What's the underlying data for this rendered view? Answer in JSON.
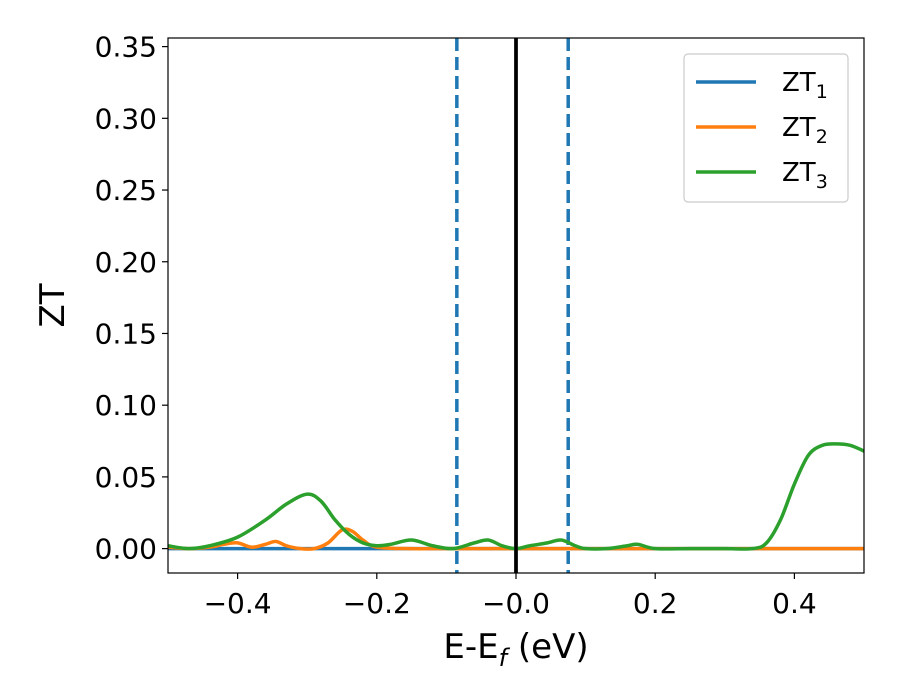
{
  "chart_data": {
    "type": "line",
    "title": "",
    "xlabel": "E-E",
    "xlabel_subscript": "f",
    "xlabel_suffix": " (eV)",
    "ylabel": "ZT",
    "xlim": [
      -0.5,
      0.5
    ],
    "ylim": [
      -0.017,
      0.356
    ],
    "xticks": [
      -0.4,
      -0.2,
      0.0,
      0.2,
      0.4
    ],
    "xtick_labels": [
      "−0.4",
      "−0.2",
      "−0.0",
      "0.2",
      "0.4"
    ],
    "yticks": [
      0.0,
      0.05,
      0.1,
      0.15,
      0.2,
      0.25,
      0.3,
      0.35
    ],
    "ytick_labels": [
      "0.00",
      "0.05",
      "0.10",
      "0.15",
      "0.20",
      "0.25",
      "0.30",
      "0.35"
    ],
    "grid": false,
    "legend_position": "top-right",
    "vertical_lines": [
      {
        "x": -0.085,
        "style": "dashed",
        "color": "#1f77b4"
      },
      {
        "x": 0.075,
        "style": "dashed",
        "color": "#1f77b4"
      },
      {
        "x": 0.0,
        "style": "solid",
        "color": "#000000"
      }
    ],
    "series": [
      {
        "name": "ZT",
        "name_subscript": "1",
        "color": "#1f77b4",
        "x": [
          -0.5,
          -0.4,
          -0.3,
          -0.2,
          -0.1,
          0.0,
          0.1,
          0.2,
          0.3,
          0.4,
          0.5
        ],
        "y": [
          0,
          0,
          0,
          0,
          0,
          0,
          0,
          0,
          0,
          0,
          0
        ]
      },
      {
        "name": "ZT",
        "name_subscript": "2",
        "color": "#ff7f0e",
        "x": [
          -0.5,
          -0.47,
          -0.44,
          -0.42,
          -0.4,
          -0.38,
          -0.36,
          -0.345,
          -0.33,
          -0.31,
          -0.29,
          -0.27,
          -0.25,
          -0.235,
          -0.22,
          -0.2,
          -0.15,
          -0.1,
          0.0,
          0.1,
          0.2,
          0.3,
          0.4,
          0.5
        ],
        "y": [
          0.001,
          0.0,
          0.001,
          0.003,
          0.004,
          0.001,
          0.003,
          0.005,
          0.002,
          0.0,
          0.0,
          0.004,
          0.013,
          0.012,
          0.006,
          0.001,
          0.0,
          0.0,
          0.0,
          0.0,
          0.0,
          0.0,
          0.0,
          0.0
        ]
      },
      {
        "name": "ZT",
        "name_subscript": "3",
        "color": "#2ca02c",
        "x": [
          -0.5,
          -0.47,
          -0.44,
          -0.4,
          -0.36,
          -0.33,
          -0.3,
          -0.28,
          -0.26,
          -0.24,
          -0.22,
          -0.2,
          -0.18,
          -0.15,
          -0.12,
          -0.09,
          -0.06,
          -0.04,
          -0.02,
          0.0,
          0.02,
          0.045,
          0.065,
          0.085,
          0.1,
          0.13,
          0.16,
          0.175,
          0.2,
          0.25,
          0.3,
          0.34,
          0.36,
          0.38,
          0.4,
          0.42,
          0.44,
          0.46,
          0.48,
          0.5
        ],
        "y": [
          0.002,
          0.0,
          0.002,
          0.008,
          0.02,
          0.031,
          0.038,
          0.033,
          0.02,
          0.01,
          0.004,
          0.002,
          0.003,
          0.006,
          0.002,
          0.0,
          0.004,
          0.006,
          0.002,
          0.0,
          0.002,
          0.004,
          0.006,
          0.002,
          0.0,
          0.0,
          0.002,
          0.003,
          0.0,
          0.0,
          0.0,
          0.0,
          0.004,
          0.02,
          0.045,
          0.065,
          0.072,
          0.073,
          0.072,
          0.068
        ]
      }
    ]
  }
}
